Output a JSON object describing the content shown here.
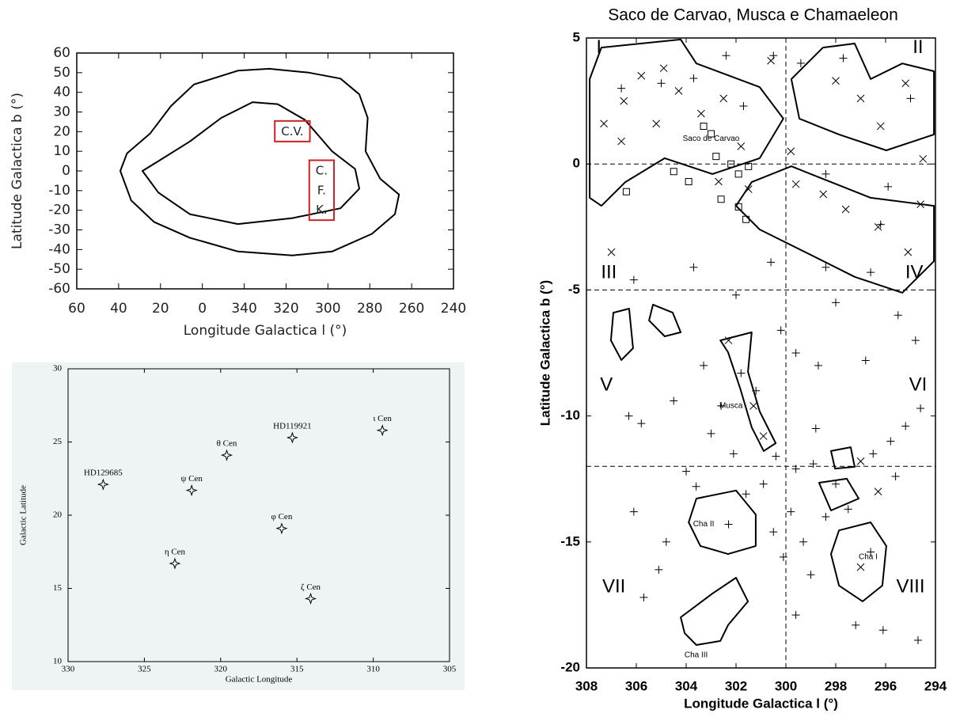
{
  "chart_data": [
    {
      "type": "contour",
      "xlabel": "Longitude Galactica l (°)",
      "ylabel": "Latitude Galactica b (°)",
      "xlim": [
        60,
        -120
      ],
      "ylim": [
        -60,
        60
      ],
      "xticks": [
        60,
        40,
        20,
        0,
        {
          "value": -20,
          "label": "340"
        },
        {
          "value": -40,
          "label": "320"
        },
        {
          "value": -60,
          "label": "300"
        },
        {
          "value": -80,
          "label": "280"
        },
        {
          "value": -100,
          "label": "260"
        },
        {
          "value": -120,
          "label": "240"
        }
      ],
      "yticks": [
        -60,
        -50,
        -40,
        -30,
        -20,
        -10,
        0,
        10,
        20,
        30,
        40,
        50,
        60
      ],
      "color": "#000000",
      "annotation_box_color": "#cc2222",
      "contours": [
        {
          "x": [
            39.2,
            36,
            25,
            15,
            4,
            -17,
            -32,
            -51,
            -66,
            -75,
            -79,
            -78,
            -85,
            -94,
            -92,
            -81,
            -62,
            -43,
            -17,
            6,
            23,
            34
          ],
          "y": [
            0,
            9,
            19,
            33,
            44,
            51,
            52,
            50,
            47,
            39,
            27,
            10,
            -4,
            -12,
            -22,
            -32,
            -41,
            -43,
            -41,
            -34,
            -26,
            -15
          ]
        },
        {
          "x": [
            28.6,
            21,
            6,
            -9,
            -24,
            -36,
            -49,
            -62,
            -73,
            -75,
            -66,
            -43,
            -17,
            6,
            21
          ],
          "y": [
            0,
            5,
            15,
            27,
            35,
            34,
            26,
            10,
            1,
            -9,
            -19,
            -24,
            -27,
            -22,
            -11
          ]
        }
      ],
      "annotations": [
        {
          "text": "C.V.",
          "x": -43,
          "y": 20
        },
        {
          "text": "C.",
          "x": -57,
          "y": 0
        },
        {
          "text": "F.",
          "x": -57,
          "y": -10
        },
        {
          "text": "K.",
          "x": -57,
          "y": -20
        }
      ]
    },
    {
      "type": "scatter",
      "xlabel": "Galactic Longitude",
      "ylabel": "Galactic Latitude",
      "xlim": [
        330,
        305
      ],
      "ylim": [
        10,
        30
      ],
      "xticks": [
        330,
        325,
        320,
        315,
        310,
        305
      ],
      "yticks": [
        10,
        15,
        20,
        25,
        30
      ],
      "background": "#eef3f3",
      "color": "#000000",
      "x": [
        327.7,
        321.9,
        319.6,
        315.3,
        309.4,
        316.0,
        323.0,
        314.1
      ],
      "y": [
        22.1,
        21.7,
        24.1,
        25.3,
        25.8,
        19.1,
        16.7,
        14.3
      ],
      "labels": [
        "HD129685",
        "ψ Cen",
        "θ Cen",
        "HD119921",
        "ι Cen",
        "φ Cen",
        "η Cen",
        "ζ Cen"
      ]
    },
    {
      "type": "scatter",
      "title": "Saco de Carvao, Musca e Chamaeleon",
      "xlabel": "Longitude Galactica l (°)",
      "ylabel": "Latitude Galactica b (°)",
      "xlim": [
        308,
        294
      ],
      "ylim": [
        -20,
        5
      ],
      "xticks": [
        308,
        306,
        304,
        302,
        300,
        298,
        296,
        294
      ],
      "yticks": [
        -20,
        -15,
        -10,
        -5,
        0,
        5
      ],
      "color": "#000000",
      "reference_lines": {
        "x": [
          300
        ],
        "y": [
          0,
          -5,
          -12
        ]
      },
      "contours": [
        {
          "x": [
            307.4,
            304.22,
            303.59,
            301.05,
            300.1,
            301.05,
            302.95,
            304.86,
            306.44,
            307.4,
            307.87,
            307.87
          ],
          "y": [
            4.62,
            4.94,
            3.99,
            3.05,
            1.8,
            0.23,
            -0.4,
            0.23,
            -0.72,
            -1.66,
            -1.34,
            3.37
          ]
        },
        {
          "x": [
            301.37,
            299.78,
            298.19,
            296.6,
            294.06,
            294.06,
            295.33,
            297.24,
            299.14,
            301.05,
            302.0
          ],
          "y": [
            -0.72,
            -0.09,
            -0.72,
            -1.34,
            -1.66,
            -3.86,
            -5.11,
            -4.48,
            -3.54,
            -2.6,
            -1.66
          ]
        },
        {
          "x": [
            299.78,
            298.51,
            297.24,
            296.6,
            295.33,
            294.06,
            294.06,
            295.97,
            297.87,
            299.46
          ],
          "y": [
            3.37,
            4.62,
            4.78,
            3.37,
            3.99,
            3.68,
            1.17,
            0.54,
            1.17,
            1.8
          ]
        },
        {
          "x": [
            302.63,
            301.37,
            301.52,
            301.05,
            300.41,
            300.89,
            301.37,
            301.84,
            302.32
          ],
          "y": [
            -7.0,
            -6.68,
            -8.25,
            -9.82,
            -11.08,
            -11.39,
            -10.45,
            -8.88,
            -7.47
          ]
        },
        {
          "x": [
            297.87,
            296.6,
            295.97,
            296.13,
            296.92,
            297.87,
            298.19
          ],
          "y": [
            -14.54,
            -14.22,
            -15.16,
            -16.73,
            -17.36,
            -16.73,
            -15.48
          ]
        },
        {
          "x": [
            303.59,
            302.0,
            301.21,
            301.21,
            302.32,
            303.43,
            303.9
          ],
          "y": [
            -13.28,
            -12.96,
            -13.91,
            -15.16,
            -15.48,
            -15.16,
            -14.22
          ]
        },
        {
          "x": [
            304.22,
            302.95,
            302.0,
            301.52,
            302.32,
            302.63,
            303.59,
            304.06
          ],
          "y": [
            -17.99,
            -17.05,
            -16.42,
            -17.36,
            -18.3,
            -18.93,
            -19.09,
            -18.62
          ]
        },
        {
          "x": [
            306.92,
            306.29,
            306.13,
            306.6,
            307.02
          ],
          "y": [
            -5.9,
            -5.74,
            -7.31,
            -7.78,
            -7.0
          ]
        },
        {
          "x": [
            305.33,
            304.54,
            304.22,
            304.86,
            305.49
          ],
          "y": [
            -5.58,
            -5.9,
            -6.68,
            -6.84,
            -6.21
          ]
        },
        {
          "x": [
            298.19,
            297.4,
            297.24,
            298.03
          ],
          "y": [
            -11.39,
            -11.24,
            -12.02,
            -12.09
          ]
        },
        {
          "x": [
            298.67,
            297.56,
            297.08,
            298.19
          ],
          "y": [
            -12.65,
            -12.49,
            -13.28,
            -13.75
          ]
        }
      ],
      "series": [
        {
          "marker": "+",
          "x": [
            300.2,
            299.6,
            298.7,
            301.8,
            303.3,
            304.5,
            306.3,
            305.8,
            303.0,
            302.1,
            300.4,
            299.6,
            298.9,
            298.0,
            296.5,
            295.8,
            295.2,
            294.6,
            295.6,
            300.9,
            301.6,
            299.8,
            300.5,
            299.3,
            298.4,
            300.1,
            299.0,
            299.6,
            297.2,
            296.1,
            294.7,
            302.3,
            304.8,
            305.1,
            305.7,
            306.1,
            304.0,
            296.8,
            296.6,
            298.4,
            300.6,
            303.7,
            306.1,
            302.0,
            298.0,
            295.5,
            294.8,
            296.2,
            295.0,
            297.7,
            299.4,
            300.5,
            302.4,
            303.7,
            305.0,
            306.6,
            301.7,
            298.4,
            295.9,
            301.2,
            302.6,
            303.6,
            297.5,
            296.6,
            298.8
          ],
          "y": [
            -6.6,
            -7.5,
            -8.0,
            -8.3,
            -8.0,
            -9.4,
            -10.0,
            -10.3,
            -10.7,
            -11.5,
            -11.6,
            -12.1,
            -11.9,
            -12.7,
            -11.5,
            -11.0,
            -10.4,
            -9.7,
            -12.4,
            -12.7,
            -13.1,
            -13.8,
            -14.6,
            -15.0,
            -14.0,
            -15.6,
            -16.3,
            -17.9,
            -18.3,
            -18.5,
            -18.9,
            -14.3,
            -15.0,
            -16.1,
            -17.2,
            -13.8,
            -12.2,
            -7.8,
            -4.3,
            -4.1,
            -3.9,
            -4.1,
            -4.6,
            -5.2,
            -5.5,
            -6.0,
            -7.0,
            -2.4,
            2.6,
            4.2,
            4.0,
            4.3,
            4.3,
            3.4,
            3.2,
            3.0,
            2.3,
            -0.4,
            -0.9,
            -9.0,
            -9.6,
            -12.8,
            -13.7,
            -15.4,
            -10.5
          ]
        },
        {
          "marker": "x",
          "x": [
            305.8,
            306.5,
            304.9,
            304.3,
            303.4,
            302.5,
            307.3,
            306.6,
            305.2,
            300.6,
            298.0,
            297.0,
            296.2,
            295.2,
            294.5,
            299.6,
            298.5,
            297.6,
            296.3,
            294.6,
            295.1,
            301.5,
            302.7,
            307.0,
            302.3,
            301.3,
            297.0,
            296.3,
            297.0,
            300.9,
            299.8,
            301.8
          ],
          "y": [
            3.5,
            2.5,
            3.8,
            2.9,
            2.0,
            2.6,
            1.6,
            0.9,
            1.6,
            4.1,
            3.3,
            2.6,
            1.5,
            3.2,
            0.2,
            -0.8,
            -1.2,
            -1.8,
            -2.5,
            -1.6,
            -3.5,
            -1.0,
            -0.7,
            -3.5,
            -7.0,
            -9.6,
            -11.8,
            -13.0,
            -16.0,
            -10.8,
            0.5,
            0.7
          ]
        },
        {
          "marker": "square",
          "x": [
            303.3,
            303.0,
            302.8,
            302.2,
            301.5,
            301.9,
            303.9,
            304.5,
            302.6,
            301.9,
            301.6,
            306.4
          ],
          "y": [
            1.5,
            1.2,
            0.3,
            0.0,
            -0.1,
            -0.4,
            -0.7,
            -0.3,
            -1.4,
            -1.7,
            -2.2,
            -1.1
          ]
        }
      ],
      "regions": [
        {
          "text": "I",
          "x": 307.5,
          "y": 4.6
        },
        {
          "text": "II",
          "x": 294.7,
          "y": 4.6
        },
        {
          "text": "III",
          "x": 307.1,
          "y": -4.33
        },
        {
          "text": "IV",
          "x": 294.85,
          "y": -4.33
        },
        {
          "text": "V",
          "x": 307.2,
          "y": -8.8
        },
        {
          "text": "VI",
          "x": 294.7,
          "y": -8.8
        },
        {
          "text": "VII",
          "x": 306.9,
          "y": -16.8
        },
        {
          "text": "VIII",
          "x": 295.0,
          "y": -16.8
        }
      ],
      "annotations": [
        {
          "text": "Saco de Carvao",
          "x": 303.0,
          "y": 1.0
        },
        {
          "text": "Musca",
          "x": 302.2,
          "y": -9.6
        },
        {
          "text": "Cha II",
          "x": 303.3,
          "y": -14.3
        },
        {
          "text": "Cha I",
          "x": 296.7,
          "y": -15.6
        },
        {
          "text": "Cha III",
          "x": 303.6,
          "y": -19.5
        }
      ]
    }
  ]
}
